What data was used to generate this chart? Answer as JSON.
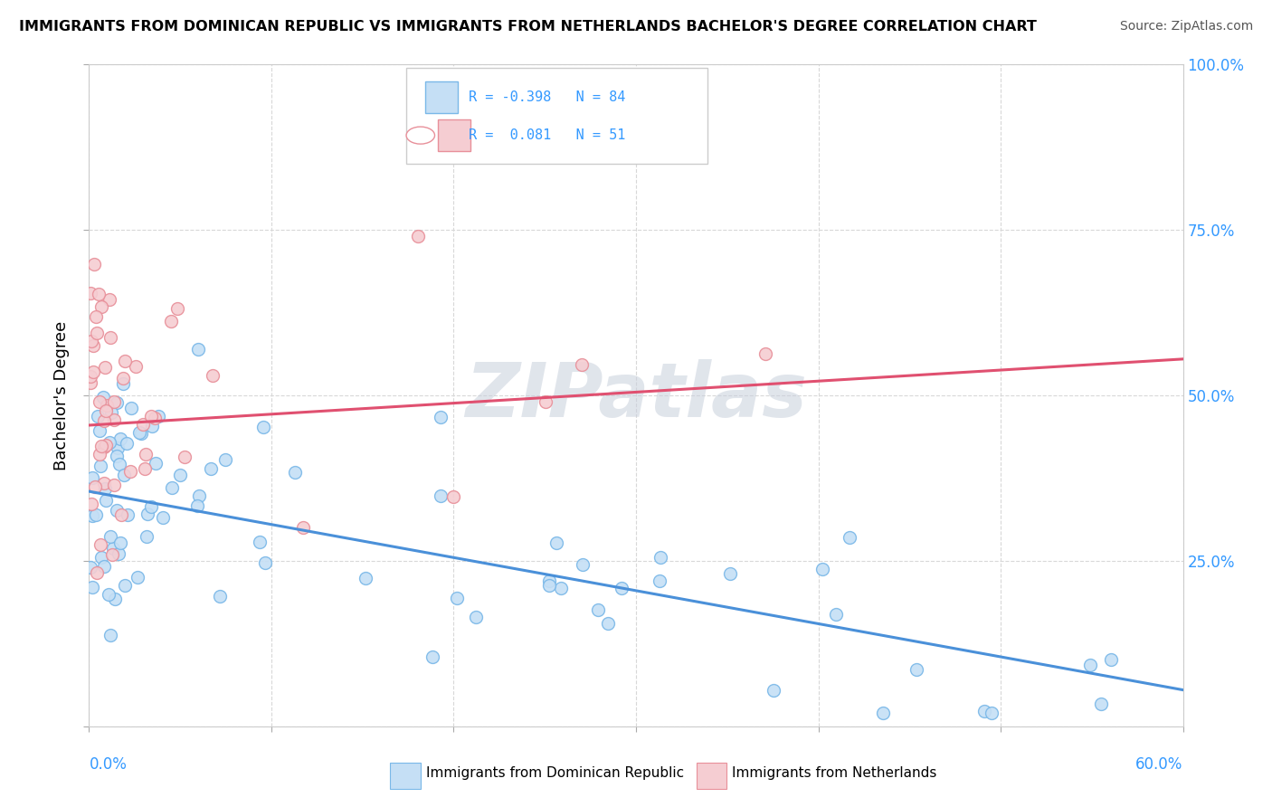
{
  "title": "IMMIGRANTS FROM DOMINICAN REPUBLIC VS IMMIGRANTS FROM NETHERLANDS BACHELOR'S DEGREE CORRELATION CHART",
  "source": "Source: ZipAtlas.com",
  "ylabel": "Bachelor's Degree",
  "y_tick_vals": [
    0.25,
    0.5,
    0.75,
    1.0
  ],
  "y_tick_labels": [
    "25.0%",
    "50.0%",
    "75.0%",
    "100.0%"
  ],
  "legend_labels": [
    "Immigrants from Dominican Republic",
    "Immigrants from Netherlands"
  ],
  "series1": {
    "name": "Dominican Republic",
    "R": -0.398,
    "N": 84,
    "edge_color": "#7ab8e8",
    "fill_color": "#c5dff5",
    "trend_color": "#4a90d9",
    "trend_start_y": 0.355,
    "trend_end_y": 0.055
  },
  "series2": {
    "name": "Netherlands",
    "R": 0.081,
    "N": 51,
    "edge_color": "#e8909a",
    "fill_color": "#f5cdd2",
    "trend_color": "#e05070",
    "trend_start_y": 0.455,
    "trend_end_y": 0.555
  },
  "xlim": [
    0.0,
    0.6
  ],
  "ylim": [
    0.0,
    1.0
  ],
  "background_color": "#ffffff",
  "grid_color": "#d8d8d8",
  "watermark": "ZIPatlas",
  "watermark_color": "#c8d0dc",
  "title_fontsize": 11.5,
  "source_fontsize": 10,
  "tick_label_fontsize": 12,
  "ylabel_fontsize": 13,
  "legend_fontsize": 11
}
